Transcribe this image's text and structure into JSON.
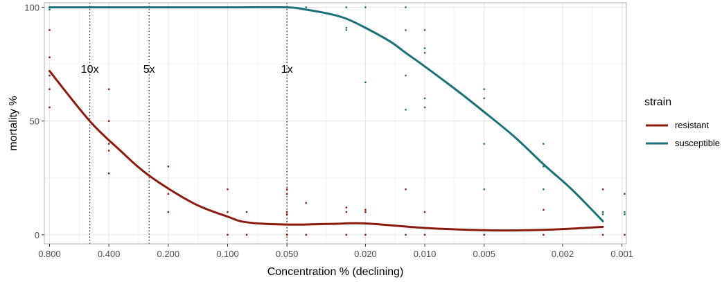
{
  "chart_data": {
    "type": "scatter",
    "xlabel": "Concentration % (declining)",
    "ylabel": "mortality %",
    "x_scale": "log",
    "x_reversed": true,
    "xlim": [
      0.85,
      0.00095
    ],
    "ylim": [
      -4,
      102
    ],
    "x_ticks": [
      {
        "value": 0.8,
        "label": "0.800"
      },
      {
        "value": 0.4,
        "label": "0.400"
      },
      {
        "value": 0.2,
        "label": "0.200"
      },
      {
        "value": 0.1,
        "label": "0.100"
      },
      {
        "value": 0.05,
        "label": "0.050"
      },
      {
        "value": 0.02,
        "label": "0.020"
      },
      {
        "value": 0.01,
        "label": "0.010"
      },
      {
        "value": 0.005,
        "label": "0.005"
      },
      {
        "value": 0.002,
        "label": "0.002"
      },
      {
        "value": 0.001,
        "label": "0.001"
      }
    ],
    "y_ticks": [
      {
        "value": 0,
        "label": "0"
      },
      {
        "value": 50,
        "label": "50"
      },
      {
        "value": 100,
        "label": "100"
      }
    ],
    "grid": true,
    "legend": {
      "title": "strain",
      "position": "right"
    },
    "reference_lines": [
      {
        "x": 0.5,
        "label": "10x"
      },
      {
        "x": 0.25,
        "label": "5x"
      },
      {
        "x": 0.05,
        "label": "1x"
      }
    ],
    "series": [
      {
        "name": "resistant",
        "color": "#8b1a0e",
        "points": [
          [
            0.8,
            90
          ],
          [
            0.8,
            78
          ],
          [
            0.8,
            72
          ],
          [
            0.8,
            70
          ],
          [
            0.8,
            64
          ],
          [
            0.8,
            56
          ],
          [
            0.4,
            64
          ],
          [
            0.4,
            50
          ],
          [
            0.4,
            40
          ],
          [
            0.4,
            37
          ],
          [
            0.4,
            27
          ],
          [
            0.2,
            30
          ],
          [
            0.2,
            18
          ],
          [
            0.2,
            10
          ],
          [
            0.1,
            20
          ],
          [
            0.1,
            10
          ],
          [
            0.1,
            0
          ],
          [
            0.08,
            10
          ],
          [
            0.08,
            0
          ],
          [
            0.05,
            20
          ],
          [
            0.05,
            18
          ],
          [
            0.05,
            10
          ],
          [
            0.05,
            9
          ],
          [
            0.05,
            0
          ],
          [
            0.04,
            14
          ],
          [
            0.04,
            0
          ],
          [
            0.025,
            12
          ],
          [
            0.025,
            10
          ],
          [
            0.025,
            0
          ],
          [
            0.02,
            11
          ],
          [
            0.02,
            10
          ],
          [
            0.02,
            0
          ],
          [
            0.0125,
            20
          ],
          [
            0.0125,
            0
          ],
          [
            0.01,
            10
          ],
          [
            0.01,
            0
          ],
          [
            0.005,
            0
          ],
          [
            0.0025,
            11
          ],
          [
            0.0025,
            0
          ],
          [
            0.00125,
            20
          ],
          [
            0.00125,
            10
          ],
          [
            0.00125,
            0
          ],
          [
            0.00097,
            18
          ],
          [
            0.00097,
            0
          ]
        ],
        "fit": [
          [
            0.8,
            72
          ],
          [
            0.5,
            50
          ],
          [
            0.35,
            37
          ],
          [
            0.25,
            26
          ],
          [
            0.15,
            14
          ],
          [
            0.1,
            8
          ],
          [
            0.08,
            5.5
          ],
          [
            0.05,
            4.5
          ],
          [
            0.03,
            4.8
          ],
          [
            0.02,
            5
          ],
          [
            0.01,
            3
          ],
          [
            0.005,
            2
          ],
          [
            0.003,
            2
          ],
          [
            0.002,
            2.5
          ],
          [
            0.00125,
            3.5
          ]
        ]
      },
      {
        "name": "susceptible",
        "color": "#1a7077",
        "points": [
          [
            0.8,
            100
          ],
          [
            0.8,
            99
          ],
          [
            0.04,
            100
          ],
          [
            0.025,
            100
          ],
          [
            0.025,
            91
          ],
          [
            0.025,
            90
          ],
          [
            0.02,
            100
          ],
          [
            0.02,
            91
          ],
          [
            0.02,
            67
          ],
          [
            0.0125,
            100
          ],
          [
            0.0125,
            90
          ],
          [
            0.0125,
            70
          ],
          [
            0.0125,
            55
          ],
          [
            0.01,
            90
          ],
          [
            0.01,
            82
          ],
          [
            0.01,
            80
          ],
          [
            0.01,
            60
          ],
          [
            0.01,
            56
          ],
          [
            0.005,
            64
          ],
          [
            0.005,
            60
          ],
          [
            0.005,
            40
          ],
          [
            0.005,
            20
          ],
          [
            0.0025,
            40
          ],
          [
            0.0025,
            30
          ],
          [
            0.0025,
            20
          ],
          [
            0.00125,
            10
          ],
          [
            0.00125,
            9
          ],
          [
            0.00097,
            10
          ],
          [
            0.00097,
            9
          ]
        ],
        "fit": [
          [
            0.8,
            100
          ],
          [
            0.7,
            100
          ],
          [
            0.5,
            100
          ],
          [
            0.25,
            100
          ],
          [
            0.1,
            100
          ],
          [
            0.05,
            100
          ],
          [
            0.04,
            99
          ],
          [
            0.03,
            97
          ],
          [
            0.025,
            95
          ],
          [
            0.02,
            91
          ],
          [
            0.015,
            85
          ],
          [
            0.0125,
            80
          ],
          [
            0.01,
            74
          ],
          [
            0.007,
            64
          ],
          [
            0.005,
            54
          ],
          [
            0.0035,
            43
          ],
          [
            0.0025,
            31
          ],
          [
            0.0018,
            20
          ],
          [
            0.00125,
            6
          ]
        ]
      }
    ]
  }
}
